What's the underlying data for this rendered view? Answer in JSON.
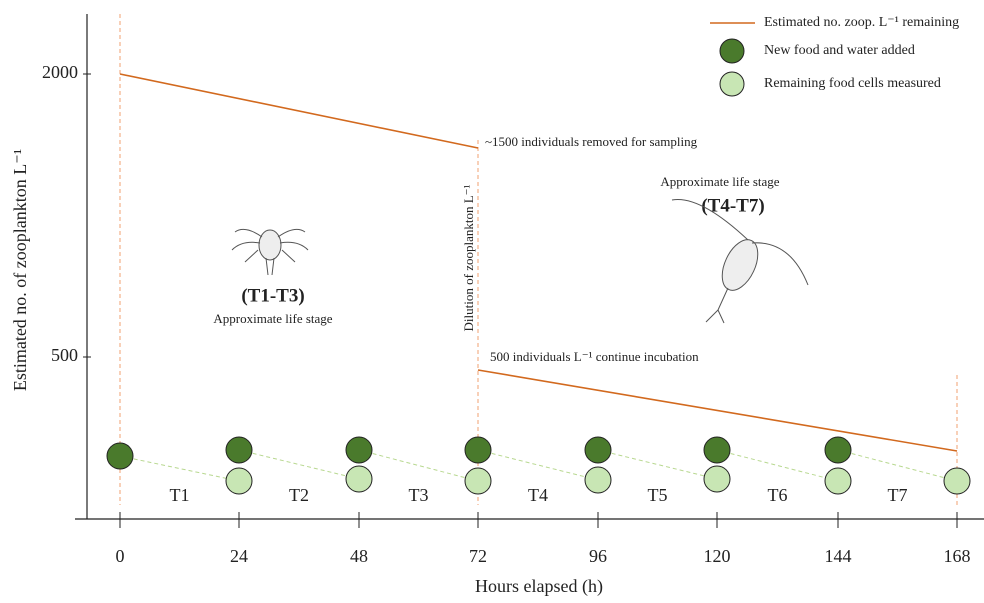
{
  "axes": {
    "x_title": "Hours elapsed (h)",
    "y_title": "Estimated no. of zooplankton L⁻¹",
    "x_ticks": [
      0,
      24,
      48,
      72,
      96,
      120,
      144,
      168
    ],
    "y_ticks": [
      2000,
      500
    ]
  },
  "periods": [
    "T1",
    "T2",
    "T3",
    "T4",
    "T5",
    "T6",
    "T7"
  ],
  "legend": [
    "Estimated no. zoop. L⁻¹ remaining",
    "New food and water added",
    "Remaining food cells measured"
  ],
  "annotations": {
    "removed": "~1500 individuals removed for sampling",
    "dilution": "Dilution of zooplankton L⁻¹",
    "continue": "500 individuals L⁻¹ continue incubation",
    "stage_early": "(T1-T3)",
    "stage_early_caption": "Approximate life stage",
    "stage_late": "(T4-T7)",
    "stage_late_caption": "Approximate life stage"
  }
}
